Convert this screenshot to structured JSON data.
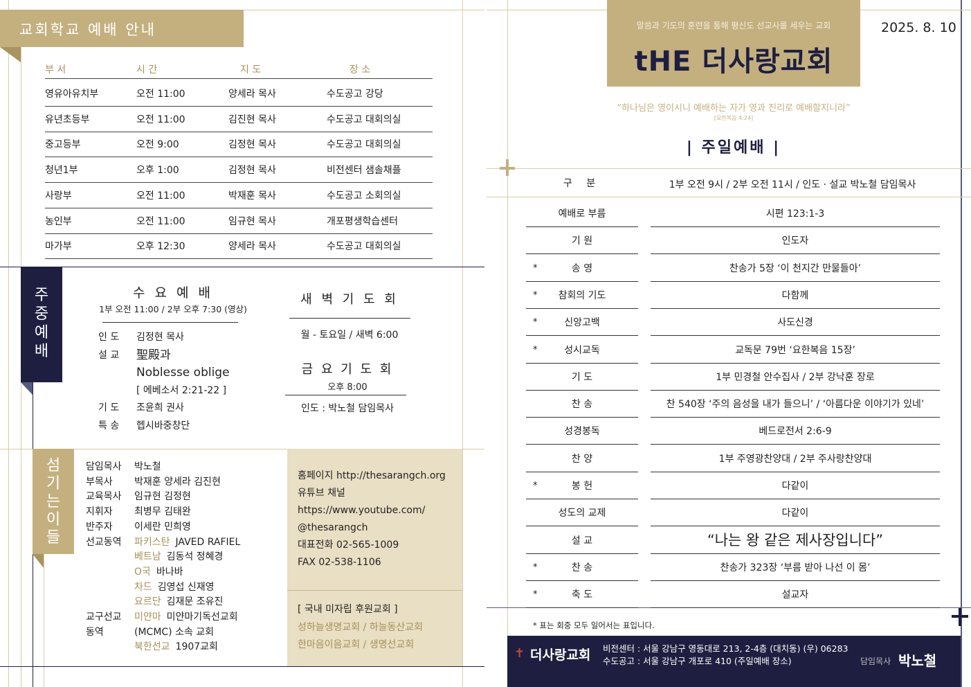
{
  "left": {
    "school": {
      "title": "교회학교 예배 안내",
      "headers": [
        "부 서",
        "시 간",
        "지 도",
        "장 소"
      ],
      "rows": [
        [
          "영유아유치부",
          "오전 11:00",
          "양세라 목사",
          "수도공고 강당"
        ],
        [
          "유년초등부",
          "오전 11:00",
          "김진현 목사",
          "수도공고 대회의실"
        ],
        [
          "중고등부",
          "오전 9:00",
          "김정현 목사",
          "수도공고 대회의실"
        ],
        [
          "청년1부",
          "오후 1:00",
          "김정현 목사",
          "비전센터 샘솔채플"
        ],
        [
          "사랑부",
          "오전 11:00",
          "박재훈 목사",
          "수도공고 소회의실"
        ],
        [
          "농인부",
          "오전 11:00",
          "임규현 목사",
          "개포평생학습센터"
        ],
        [
          "마가부",
          "오후 12:30",
          "양세라 목사",
          "수도공고 대회의실"
        ]
      ]
    },
    "weekday": {
      "tab": [
        "주",
        "중",
        "예",
        "배"
      ],
      "wed": {
        "title": "수 요 예 배",
        "time": "1부 오전 11:00 / 2부 오후 7:30 (영상)",
        "items": [
          {
            "k": "인 도",
            "v": "김정현 목사"
          },
          {
            "k": "설 교",
            "v": "聖殿과"
          },
          {
            "k": "",
            "v": "Noblesse oblige"
          },
          {
            "k": "",
            "v": "[ 에베소서 2:21-22 ]"
          },
          {
            "k": "기 도",
            "v": "조윤희 권사"
          },
          {
            "k": "특 송",
            "v": "헵시바중창단"
          }
        ]
      },
      "dawn": {
        "title": "새 벽 기 도 회",
        "time": "월 - 토요일 / 새벽 6:00"
      },
      "fri": {
        "title": "금 요 기 도 회",
        "time": "오후 8:00",
        "leader": "인도 : 박노철 담임목사"
      }
    },
    "staff": {
      "tab": [
        "섬",
        "기",
        "는",
        "이",
        "들"
      ],
      "rows": [
        {
          "k": "담임목사",
          "v": "박노철"
        },
        {
          "k": "부목사",
          "v": "박재훈 양세라 김진현"
        },
        {
          "k": "교육목사",
          "v": "임규현 김정현"
        },
        {
          "k": "지휘자",
          "v": "최병무 김태완"
        },
        {
          "k": "반주자",
          "v": "이세란 민희영"
        }
      ],
      "missions_label": "선교동역",
      "missions": [
        {
          "c": "파키스탄",
          "n": "JAVED RAFIEL"
        },
        {
          "c": "베트남",
          "n": "김동석 정혜경"
        },
        {
          "c": "O국",
          "n": "바나바"
        },
        {
          "c": "차드",
          "n": "김영섭 신재영"
        },
        {
          "c": "요르단",
          "n": "김재문 조유진"
        }
      ],
      "district_label1": "교구선교",
      "district_label2": "동역",
      "district": [
        {
          "c": "미얀마",
          "n": "미얀마기독선교회"
        },
        {
          "c": "",
          "n": "(MCMC) 소속 교회"
        },
        {
          "c": "북한선교",
          "n": "1907교회"
        }
      ]
    },
    "contact": [
      "홈페이지 http://thesarangch.org",
      "유튜브 채널",
      "https://www.youtube.com/",
      "@thesarangch",
      "대표전화 02-565-1009",
      "FAX 02-538-1106"
    ],
    "support": {
      "title": "[ 국내 미자립 후원교회 ]",
      "lines": [
        "성하늘생명교회 / 하늘동산교회",
        "한마음이음교회 / 생명선교회"
      ]
    }
  },
  "right": {
    "motto": "말씀과 기도의 훈련을 통해 평신도 선교사를 세우는 교회",
    "logo": "tHE 더사랑교회",
    "date": "2025. 8. 10",
    "verse": "“하나님은 영이시니 예배하는 자가 영과 진리로 예배할지니라”",
    "verse_ref": "[요한복음 4:24]",
    "service_title": "| 주일예배 |",
    "header_label": "구 분",
    "header_info": "1부 오전 9시 / 2부 오전 11시 / 인도 · 설교 박노철 담임목사",
    "order": [
      {
        "star": "",
        "l": "예배로 부름",
        "v": "시편 123:1-3"
      },
      {
        "star": "",
        "l": "기 원",
        "v": "인도자"
      },
      {
        "star": "*",
        "l": "송 영",
        "v": "찬송가 5장 ‘이 천지간 만물들아’"
      },
      {
        "star": "*",
        "l": "참회의 기도",
        "v": "다함께"
      },
      {
        "star": "*",
        "l": "신앙고백",
        "v": "사도신경"
      },
      {
        "star": "*",
        "l": "성시교독",
        "v": "교독문 79번 ‘요한복음 15장’"
      },
      {
        "star": "",
        "l": "기 도",
        "v": "1부 민경철 안수집사 / 2부 강낙훈 장로"
      },
      {
        "star": "",
        "l": "찬 송",
        "v": "찬 540장 ‘주의 음성을 내가 들으니’ / ‘아름다운 이야기가 있네’"
      },
      {
        "star": "",
        "l": "성경봉독",
        "v": "베드로전서 2:6-9"
      },
      {
        "star": "",
        "l": "찬 양",
        "v": "1부 주영광찬양대 / 2부 주사랑찬양대"
      },
      {
        "star": "*",
        "l": "봉 헌",
        "v": "다같이"
      },
      {
        "star": "",
        "l": "성도의 교제",
        "v": "다같이"
      },
      {
        "star": "",
        "l": "설 교",
        "v": "“나는 왕 같은 제사장입니다”"
      },
      {
        "star": "*",
        "l": "찬 송",
        "v": "찬송가 323장 ‘부름 받아 나선 이 몸’"
      },
      {
        "star": "*",
        "l": "축 도",
        "v": "설교자"
      }
    ],
    "note": "* 표는 회중 모두 일어서는 표입니다.",
    "footer": {
      "name": "더사랑교회",
      "addr1": "비전센터 : 서울 강남구 영동대로 213, 2-4층 (대치동) (우) 06283",
      "addr2": "수도공고 : 서울 강남구 개포로 410 (주일예배 장소)",
      "pastor_label": "담임목사",
      "pastor": "박노철"
    }
  },
  "colors": {
    "gold": "#c4b07f",
    "navy": "#1e1f40",
    "beige": "#e8dfc4",
    "goldtext": "#a8905a"
  }
}
